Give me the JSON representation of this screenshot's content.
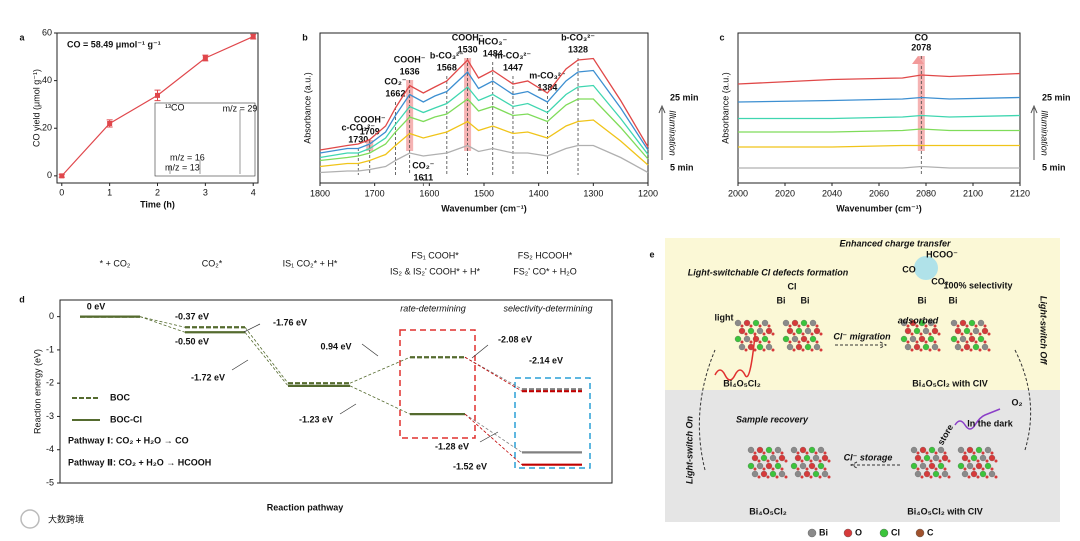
{
  "chart_data": [
    {
      "type": "line",
      "panel": "a",
      "annotation": "CO = 58.49 μmol⁻¹ g⁻¹",
      "xlabel": "Time (h)",
      "ylabel": "CO yield (μmol g⁻¹)",
      "x": [
        0,
        1,
        2,
        3,
        4
      ],
      "values": [
        0,
        22,
        33.8,
        49.5,
        58.5
      ],
      "errors": [
        0.6,
        1.5,
        2.2,
        1.2,
        1.0
      ],
      "color": "#e0474c",
      "xlim": [
        -0.1,
        4.1
      ],
      "xticks": [
        0,
        1,
        2,
        3,
        4
      ],
      "ylim": [
        -3,
        60
      ],
      "yticks": [
        0,
        20,
        40,
        60
      ],
      "inset": {
        "labels": [
          "¹³CO",
          "m/z = 29",
          "m/z = 16",
          "m/z = 13"
        ]
      }
    },
    {
      "type": "spectrum",
      "panel": "b",
      "xlabel": "Wavenumber (cm⁻¹)",
      "ylabel": "Absorbance (a.u.)",
      "xlim": [
        1800,
        1200
      ],
      "xticks": [
        1800,
        1700,
        1600,
        1500,
        1400,
        1300,
        1200
      ],
      "ylim": [
        0,
        10
      ],
      "x": [
        1800,
        1750,
        1730,
        1709,
        1680,
        1662,
        1636,
        1611,
        1590,
        1568,
        1530,
        1510,
        1484,
        1447,
        1420,
        1384,
        1350,
        1328,
        1300,
        1250,
        1200
      ],
      "series": [
        {
          "color": "#e04848",
          "values": [
            2.2,
            2.5,
            2.6,
            2.9,
            3.8,
            5.0,
            6.5,
            6.0,
            6.4,
            6.8,
            8.2,
            7.0,
            7.5,
            6.6,
            6.8,
            6.0,
            7.6,
            8.2,
            8.3,
            5.5,
            2.4
          ]
        },
        {
          "color": "#3d8fd1",
          "values": [
            2.0,
            2.3,
            2.3,
            2.6,
            3.4,
            4.5,
            5.9,
            5.4,
            5.8,
            6.1,
            7.4,
            6.3,
            6.8,
            5.9,
            6.1,
            5.4,
            6.8,
            7.4,
            7.5,
            5.0,
            2.2
          ]
        },
        {
          "color": "#3fd6b0",
          "values": [
            1.7,
            2.0,
            2.0,
            2.3,
            3.0,
            3.9,
            5.1,
            4.7,
            5.0,
            5.3,
            6.4,
            5.5,
            5.9,
            5.1,
            5.3,
            4.7,
            5.9,
            6.4,
            6.5,
            4.3,
            1.9
          ]
        },
        {
          "color": "#7fdc5a",
          "values": [
            1.5,
            1.7,
            1.8,
            2.0,
            2.6,
            3.4,
            4.4,
            4.1,
            4.4,
            4.6,
            5.6,
            4.8,
            5.1,
            4.5,
            4.6,
            4.1,
            5.2,
            5.6,
            5.6,
            3.7,
            1.6
          ]
        },
        {
          "color": "#f0c419",
          "values": [
            1.1,
            1.3,
            1.3,
            1.5,
            1.9,
            2.5,
            3.3,
            3.0,
            3.2,
            3.4,
            4.1,
            3.5,
            3.8,
            3.3,
            3.4,
            3.0,
            3.8,
            4.1,
            4.2,
            2.8,
            1.2
          ]
        },
        {
          "color": "#b0b0b0",
          "values": [
            0.7,
            0.8,
            0.8,
            0.9,
            1.1,
            1.5,
            2.0,
            1.8,
            1.9,
            2.0,
            2.5,
            2.1,
            2.3,
            2.0,
            2.0,
            1.8,
            2.3,
            2.5,
            2.5,
            1.7,
            0.7
          ]
        }
      ],
      "peaks": [
        {
          "label": "c-CO₃²⁻",
          "value": 1730,
          "color": "#222222"
        },
        {
          "label": "COOH⁻",
          "value": 1709,
          "color": "#e0302f",
          "highlight": true
        },
        {
          "label": "CO₂⁻",
          "value": 1662,
          "color": "#222222"
        },
        {
          "label": "COOH⁻",
          "value": 1636,
          "color": "#e0302f",
          "highlight": true
        },
        {
          "label": "CO₂⁻",
          "value": 1611,
          "color": "#222222"
        },
        {
          "label": "b-CO₃²⁻",
          "value": 1568,
          "color": "#222222"
        },
        {
          "label": "COOH⁻",
          "value": 1530,
          "color": "#e0302f",
          "highlight": true
        },
        {
          "label": "HCO₃⁻",
          "value": 1484,
          "color": "#222222"
        },
        {
          "label": "m-CO₃²⁻",
          "value": 1447,
          "color": "#222222"
        },
        {
          "label": "m-CO₃²⁻",
          "value": 1384,
          "color": "#222222"
        },
        {
          "label": "b-CO₃²⁻",
          "value": 1328,
          "color": "#222222"
        }
      ],
      "time_labels": [
        "25 min",
        "5 min"
      ],
      "arrow_label": "Illumination"
    },
    {
      "type": "spectrum",
      "panel": "c",
      "xlabel": "Wavenumber (cm⁻¹)",
      "ylabel": "Absorbance (a.u.)",
      "xlim": [
        2000,
        2120
      ],
      "xticks": [
        2000,
        2020,
        2040,
        2060,
        2080,
        2100,
        2120
      ],
      "ylim": [
        0,
        10
      ],
      "x": [
        2000,
        2040,
        2070,
        2078,
        2090,
        2120
      ],
      "series": [
        {
          "color": "#e04848",
          "values": [
            6.6,
            6.9,
            7.0,
            7.2,
            7.1,
            7.3
          ]
        },
        {
          "color": "#3d8fd1",
          "values": [
            5.4,
            5.5,
            5.6,
            5.7,
            5.6,
            5.7
          ]
        },
        {
          "color": "#3fd6b0",
          "values": [
            4.3,
            4.3,
            4.4,
            4.5,
            4.4,
            4.5
          ]
        },
        {
          "color": "#7fdc5a",
          "values": [
            3.4,
            3.4,
            3.5,
            3.6,
            3.5,
            3.5
          ]
        },
        {
          "color": "#f0c419",
          "values": [
            2.4,
            2.4,
            2.5,
            2.5,
            2.5,
            2.5
          ]
        },
        {
          "color": "#b0b0b0",
          "values": [
            1.0,
            1.0,
            1.0,
            1.1,
            1.0,
            1.0
          ]
        }
      ],
      "peaks": [
        {
          "label": "CO",
          "value": 2078,
          "color": "#e0302f",
          "highlight": true
        }
      ],
      "time_labels": [
        "25 min",
        "5 min"
      ],
      "arrow_label": "Illumination"
    },
    {
      "type": "energy-diagram",
      "panel": "d",
      "ylabel": "Reaction energy (eV)",
      "xlabel": "Reaction pathway",
      "ylim": [
        -5,
        0.5
      ],
      "yticks": [
        0,
        -1,
        -2,
        -3,
        -4,
        -5
      ],
      "states": [
        {
          "label": "* + CO₂"
        },
        {
          "label": "CO₂*"
        },
        {
          "label": "IS₁ CO₂* + H*"
        },
        {
          "label": "FS₁ COOH*",
          "label2": "IS₂ & IS₂' COOH* + H*"
        },
        {
          "label": "FS₂ HCOOH*",
          "label2": "FS₂' CO* + H₂O",
          "color2": "#c00000"
        }
      ],
      "series": [
        {
          "name": "BOC",
          "color": "#556b2f",
          "dashed": true,
          "values": [
            0,
            -0.32,
            -2.0,
            -1.22
          ],
          "final": [
            {
              "value": -2.18,
              "color": "#808080"
            },
            {
              "value": -2.24,
              "color": "#c00000"
            }
          ]
        },
        {
          "name": "BOC-Cl",
          "color": "#556b2f",
          "dashed": false,
          "values": [
            0,
            -0.47,
            -2.08,
            -2.93
          ],
          "final": [
            {
              "value": -4.08,
              "color": "#808080"
            },
            {
              "value": -4.45,
              "color": "#c00000"
            }
          ]
        }
      ],
      "annotations": [
        {
          "text": "0 eV",
          "color": "#4a6b1e"
        },
        {
          "text": "-0.37 eV",
          "color": "#4a6b1e"
        },
        {
          "text": "-0.50 eV",
          "color": "#4a6b1e"
        },
        {
          "text": "-1.76 eV",
          "color": "#4a6b1e"
        },
        {
          "text": "-1.72 eV",
          "color": "#4a6b1e"
        },
        {
          "text": "0.94 eV",
          "color": "#4a6b1e"
        },
        {
          "text": "-1.23 eV",
          "color": "#4a6b1e"
        },
        {
          "text": "-2.08 eV",
          "color": "#666666"
        },
        {
          "text": "-2.14 eV",
          "color": "#c00000"
        },
        {
          "text": "-1.28 eV",
          "color": "#666666"
        },
        {
          "text": "-1.52 eV",
          "color": "#c00000"
        }
      ],
      "boxes": [
        {
          "label": "rate-determining",
          "color": "#e0302f"
        },
        {
          "label": "selectivity-determining",
          "color": "#2a9fd6"
        }
      ],
      "pathways": [
        {
          "text": "Pathway Ⅰ: CO₂ + H₂O → CO",
          "color": "#c00000"
        },
        {
          "text": "Pathway Ⅱ: CO₂ + H₂O → HCOOH",
          "color": "#777777"
        }
      ]
    }
  ],
  "scheme": {
    "panel": "e",
    "labels": [
      "Enhanced charge transfer",
      "Light-switchable Cl defects formation",
      "Cl",
      "Bi",
      "Bi",
      "HCOO⁻",
      "CO",
      "CO₂",
      "100% selectivity",
      "Bi",
      "Bi",
      "light",
      "adsorbed",
      "Cl⁻ migration",
      "Bi₄O₅Cl₂",
      "Bi₄O₅Cl₂ with ClV",
      "Light-switch Off",
      "Light-switch On",
      "Sample recovery",
      "O₂",
      "In the dark",
      "store",
      "Cl⁻ storage",
      "Bi₄O₅Cl₂",
      "Bi₄O₅Cl₂ with ClV"
    ],
    "atoms": [
      {
        "label": "Bi",
        "color": "#8a8a8a"
      },
      {
        "label": "O",
        "color": "#d63a3a"
      },
      {
        "label": "Cl",
        "color": "#3cc43c"
      },
      {
        "label": "C",
        "color": "#a0522d"
      }
    ]
  },
  "watermark": "大数跨境"
}
